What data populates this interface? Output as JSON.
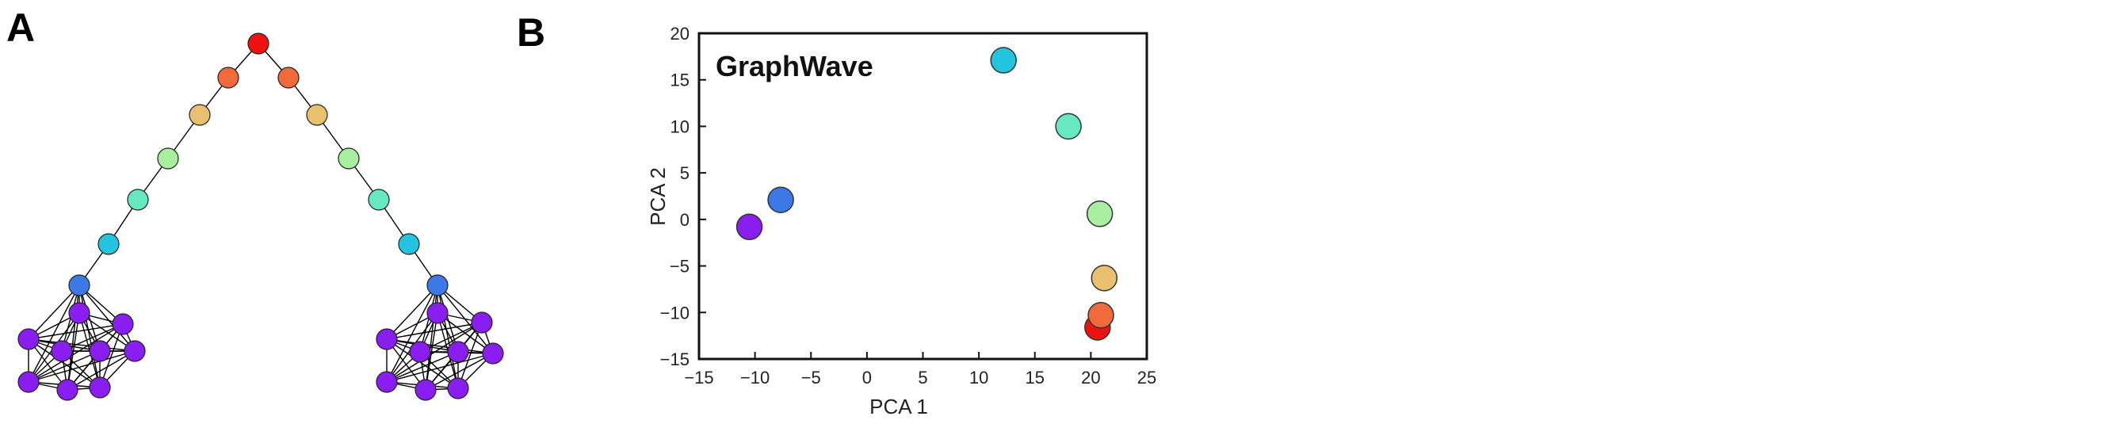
{
  "panels": {
    "a_label": "A",
    "b_label": "B"
  },
  "graph": {
    "nodes": [
      {
        "id": "apex",
        "color": "#ee1111"
      },
      {
        "id": "L1",
        "color": "#f06a3c"
      },
      {
        "id": "L2",
        "color": "#e8c070"
      },
      {
        "id": "L3",
        "color": "#a8f0a0"
      },
      {
        "id": "L4",
        "color": "#66e8c0"
      },
      {
        "id": "L5",
        "color": "#22c4e0"
      },
      {
        "id": "L6",
        "color": "#3c78e6"
      },
      {
        "id": "R1",
        "color": "#f06a3c"
      },
      {
        "id": "R2",
        "color": "#e8c070"
      },
      {
        "id": "R3",
        "color": "#a8f0a0"
      },
      {
        "id": "R4",
        "color": "#66e8c0"
      },
      {
        "id": "R5",
        "color": "#22c4e0"
      },
      {
        "id": "R6",
        "color": "#3c78e6"
      }
    ],
    "clique_color": "#8a1ef0",
    "clique_size": 10
  },
  "chart_data": {
    "type": "scatter",
    "title": "GraphWave",
    "xlabel": "PCA 1",
    "ylabel": "PCA 2",
    "xlim": [
      -15,
      25
    ],
    "ylim": [
      -15,
      20
    ],
    "xticks": [
      "−15",
      "−10",
      "−5",
      "0",
      "5",
      "10",
      "15",
      "20",
      "25"
    ],
    "yticks": [
      "20",
      "15",
      "10",
      "5",
      "0",
      "−5",
      "−10",
      "−15"
    ],
    "grid": false,
    "points": [
      {
        "x": -10.5,
        "y": -0.8,
        "color": "#8a1ef0"
      },
      {
        "x": -7.7,
        "y": 2.1,
        "color": "#3c78e6"
      },
      {
        "x": 12.2,
        "y": 17.1,
        "color": "#22c4e0"
      },
      {
        "x": 18.0,
        "y": 10.0,
        "color": "#66e8c0"
      },
      {
        "x": 20.8,
        "y": 0.6,
        "color": "#a8f0a0"
      },
      {
        "x": 21.2,
        "y": -6.3,
        "color": "#e8c070"
      },
      {
        "x": 20.6,
        "y": -11.6,
        "color": "#ee1111"
      },
      {
        "x": 20.9,
        "y": -10.3,
        "color": "#f06a3c"
      }
    ]
  }
}
